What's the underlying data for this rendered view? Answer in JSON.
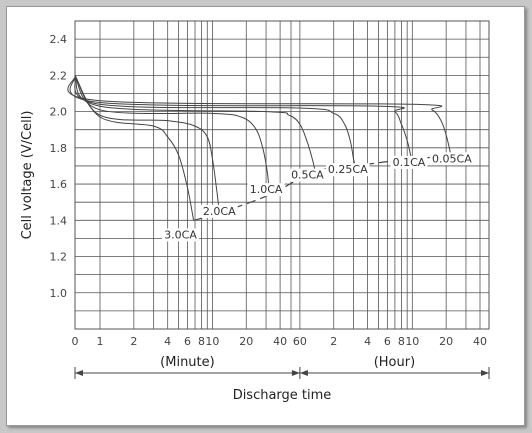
{
  "chart_data": {
    "type": "line",
    "title": "",
    "ylabel": "Cell voltage (V/Cell)",
    "xlabel": "Discharge time",
    "x_scale": "log",
    "x_unit_segments": [
      {
        "label": "(Minute)",
        "from_minutes": 0,
        "to_minutes": 60
      },
      {
        "label": "(Hour)",
        "from_minutes": 60,
        "to_minutes": 2400
      }
    ],
    "x_tick_labels": [
      {
        "text": "0",
        "minutes": 0
      },
      {
        "text": "1",
        "minutes": 1
      },
      {
        "text": "2",
        "minutes": 2
      },
      {
        "text": "4",
        "minutes": 4
      },
      {
        "text": "6",
        "minutes": 6
      },
      {
        "text": "8",
        "minutes": 8
      },
      {
        "text": "10",
        "minutes": 10
      },
      {
        "text": "20",
        "minutes": 20
      },
      {
        "text": "40",
        "minutes": 40
      },
      {
        "text": "60",
        "minutes": 60
      },
      {
        "text": "2",
        "minutes": 120
      },
      {
        "text": "4",
        "minutes": 240
      },
      {
        "text": "6",
        "minutes": 360
      },
      {
        "text": "8",
        "minutes": 480
      },
      {
        "text": "10",
        "minutes": 600
      },
      {
        "text": "20",
        "minutes": 1200
      },
      {
        "text": "40",
        "minutes": 2400
      }
    ],
    "y_ticks": [
      "1.0",
      "1.2",
      "1.4",
      "1.6",
      "1.8",
      "2.0",
      "2.2",
      "2.4"
    ],
    "ylim": [
      0.8,
      2.5
    ],
    "grid": true,
    "series": [
      {
        "name": "3.0CA",
        "points": [
          [
            0,
            2.2
          ],
          [
            1,
            1.97
          ],
          [
            3,
            1.92
          ],
          [
            4,
            1.86
          ],
          [
            5,
            1.76
          ],
          [
            6,
            1.58
          ],
          [
            6.8,
            1.4
          ]
        ]
      },
      {
        "name": "2.0CA",
        "points": [
          [
            0,
            2.2
          ],
          [
            1,
            1.98
          ],
          [
            4,
            1.95
          ],
          [
            7,
            1.92
          ],
          [
            9,
            1.86
          ],
          [
            10,
            1.74
          ],
          [
            11,
            1.55
          ],
          [
            11.5,
            1.44
          ]
        ]
      },
      {
        "name": "1.0CA",
        "points": [
          [
            0,
            2.2
          ],
          [
            1,
            2.01
          ],
          [
            10,
            1.99
          ],
          [
            18,
            1.97
          ],
          [
            24,
            1.91
          ],
          [
            28,
            1.8
          ],
          [
            31,
            1.65
          ],
          [
            32,
            1.54
          ]
        ]
      },
      {
        "name": "0.5CA",
        "points": [
          [
            0,
            2.2
          ],
          [
            1,
            2.03
          ],
          [
            30,
            2.0
          ],
          [
            48,
            1.98
          ],
          [
            60,
            1.93
          ],
          [
            70,
            1.83
          ],
          [
            78,
            1.73
          ],
          [
            82,
            1.67
          ]
        ]
      },
      {
        "name": "0.25CA",
        "points": [
          [
            0,
            2.2
          ],
          [
            1,
            2.04
          ],
          [
            60,
            2.02
          ],
          [
            120,
            1.99
          ],
          [
            150,
            1.93
          ],
          [
            168,
            1.84
          ],
          [
            180,
            1.74
          ],
          [
            186,
            1.7
          ]
        ]
      },
      {
        "name": "0.1CA",
        "points": [
          [
            0,
            2.2
          ],
          [
            1,
            2.05
          ],
          [
            300,
            2.03
          ],
          [
            420,
            2.0
          ],
          [
            480,
            1.93
          ],
          [
            540,
            1.84
          ],
          [
            570,
            1.78
          ],
          [
            590,
            1.74
          ]
        ]
      },
      {
        "name": "0.05CA",
        "points": [
          [
            0,
            2.2
          ],
          [
            1,
            2.06
          ],
          [
            600,
            2.04
          ],
          [
            900,
            2.01
          ],
          [
            1080,
            1.95
          ],
          [
            1200,
            1.87
          ],
          [
            1290,
            1.79
          ],
          [
            1320,
            1.75
          ]
        ]
      }
    ],
    "discharge_end_line": [
      [
        6.8,
        1.4
      ],
      [
        11.5,
        1.44
      ],
      [
        32,
        1.54
      ],
      [
        82,
        1.67
      ],
      [
        186,
        1.7
      ],
      [
        590,
        1.74
      ],
      [
        1320,
        1.75
      ]
    ],
    "label_positions": [
      {
        "text": "3.0CA",
        "x_minutes": 5.2,
        "y": 1.3
      },
      {
        "text": "2.0CA",
        "x_minutes": 11.5,
        "y": 1.43
      },
      {
        "text": "1.0CA",
        "x_minutes": 30,
        "y": 1.55
      },
      {
        "text": "0.5CA",
        "x_minutes": 70,
        "y": 1.63
      },
      {
        "text": "0.25CA",
        "x_minutes": 160,
        "y": 1.66
      },
      {
        "text": "0.1CA",
        "x_minutes": 560,
        "y": 1.7
      },
      {
        "text": "0.05CA",
        "x_minutes": 1350,
        "y": 1.72
      }
    ]
  }
}
